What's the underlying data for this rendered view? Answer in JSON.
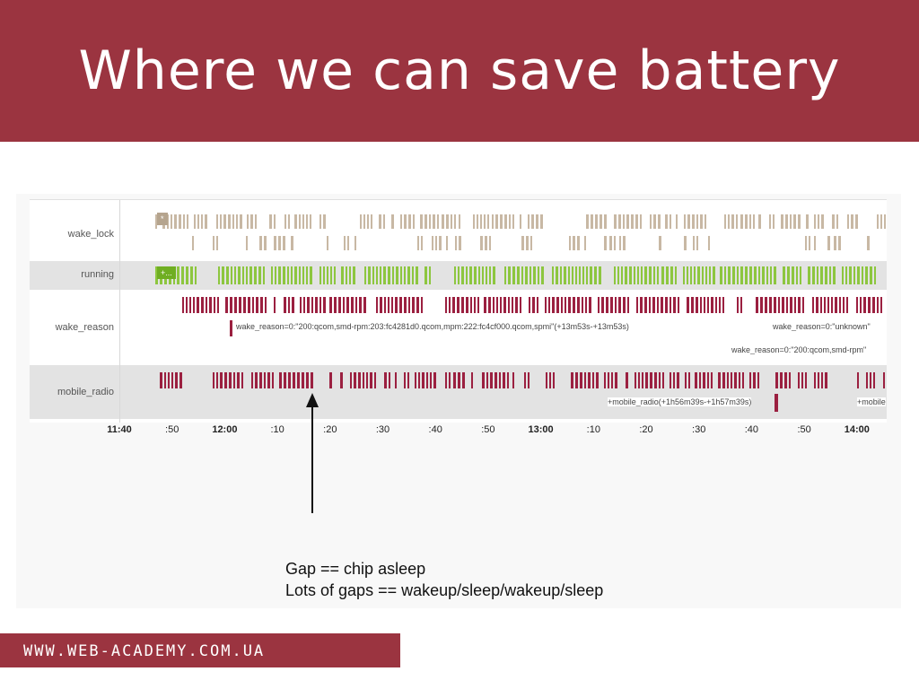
{
  "slide": {
    "title": "Where we can save battery",
    "footer": "WWW.WEB-ACADEMY.COM.UA",
    "caption": [
      "Gap == chip asleep",
      "Lots of gaps == wakeup/sleep/wakeup/sleep"
    ]
  },
  "timeline": {
    "lanes": [
      {
        "id": "wake_lock",
        "label": "wake_lock",
        "color": "#c8b8a4"
      },
      {
        "id": "running",
        "label": "running",
        "color": "#8dc63f"
      },
      {
        "id": "wake_reason",
        "label": "wake_reason",
        "color": "#9b2040"
      },
      {
        "id": "mobile_radio",
        "label": "mobile_radio",
        "color": "#9b2040"
      }
    ],
    "markers": {
      "wake_lock": "*",
      "running": "+..."
    },
    "annotations": [
      {
        "lane": "wake_reason",
        "text": "wake_reason=0:\"200:qcom,smd-rpm:203:fc4281d0.qcom,mpm:222:fc4cf000.qcom,spmi\"(+13m53s-+13m53s)"
      },
      {
        "lane": "wake_reason",
        "text": "wake_reason=0:\"unknown\""
      },
      {
        "lane": "wake_reason",
        "text": "wake_reason=0:\"200:qcom,smd-rpm\""
      },
      {
        "lane": "mobile_radio",
        "text": "+mobile_radio(+1h56m39s-+1h57m39s)"
      },
      {
        "lane": "mobile_radio",
        "text": "+mobile"
      }
    ],
    "ticks": [
      {
        "label": "11:40",
        "bold": true
      },
      {
        "label": ":50",
        "bold": false
      },
      {
        "label": "12:00",
        "bold": true
      },
      {
        "label": ":10",
        "bold": false
      },
      {
        "label": ":20",
        "bold": false
      },
      {
        "label": ":30",
        "bold": false
      },
      {
        "label": ":40",
        "bold": false
      },
      {
        "label": ":50",
        "bold": false
      },
      {
        "label": "13:00",
        "bold": true
      },
      {
        "label": ":10",
        "bold": false
      },
      {
        "label": ":20",
        "bold": false
      },
      {
        "label": ":30",
        "bold": false
      },
      {
        "label": ":40",
        "bold": false
      },
      {
        "label": ":50",
        "bold": false
      },
      {
        "label": "14:00",
        "bold": true
      }
    ],
    "colors": {
      "brand": "#9b3440",
      "wake_lock": "#c8b8a4",
      "running": "#8dc63f",
      "event": "#9b2040"
    }
  }
}
